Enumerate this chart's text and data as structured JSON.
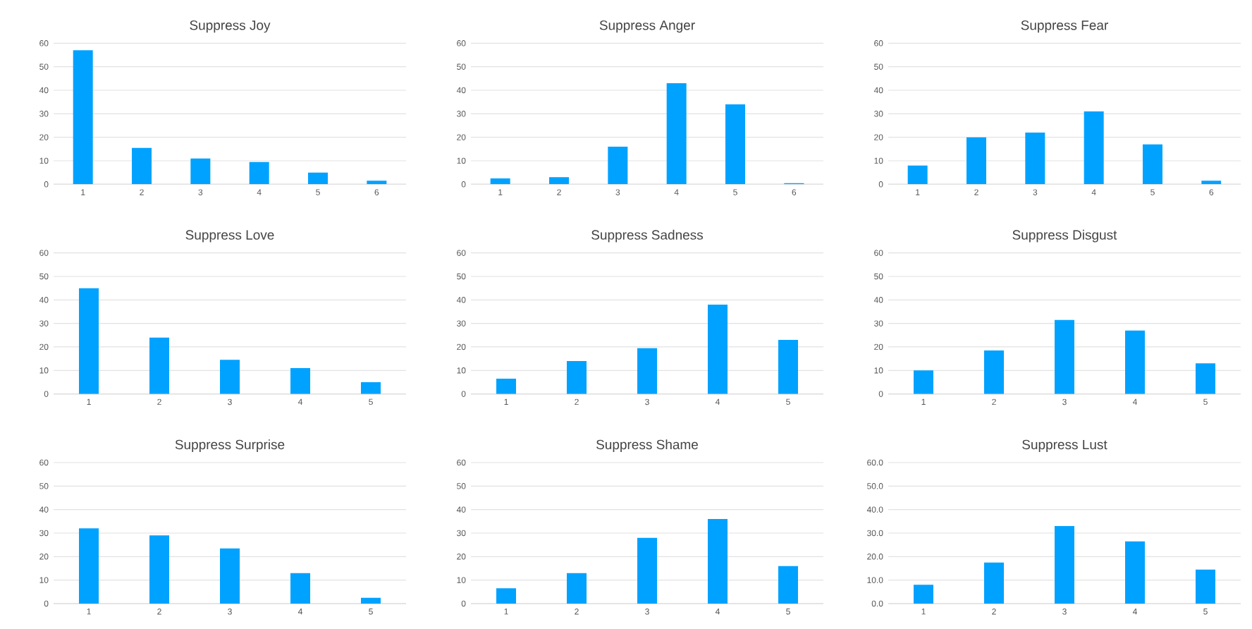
{
  "chart_data": [
    {
      "type": "bar",
      "title": "Suppress Joy",
      "categories": [
        "1",
        "2",
        "3",
        "4",
        "5",
        "6"
      ],
      "values": [
        57,
        15.5,
        11,
        9.5,
        5,
        1.5
      ],
      "color": "#00a2ff",
      "ylim": [
        0,
        60
      ],
      "yticks": [
        0,
        10,
        20,
        30,
        40,
        50,
        60
      ],
      "grid": "y"
    },
    {
      "type": "bar",
      "title": "Suppress Anger",
      "categories": [
        "1",
        "2",
        "3",
        "4",
        "5",
        "6"
      ],
      "values": [
        2.5,
        3,
        16,
        43,
        34,
        0.5
      ],
      "color": "#00a2ff",
      "ylim": [
        0,
        60
      ],
      "yticks": [
        0,
        10,
        20,
        30,
        40,
        50,
        60
      ],
      "grid": "y"
    },
    {
      "type": "bar",
      "title": "Suppress Fear",
      "categories": [
        "1",
        "2",
        "3",
        "4",
        "5",
        "6"
      ],
      "values": [
        8,
        20,
        22,
        31,
        17,
        1.5
      ],
      "color": "#00a2ff",
      "ylim": [
        0,
        60
      ],
      "yticks": [
        0,
        10,
        20,
        30,
        40,
        50,
        60
      ],
      "grid": "y"
    },
    {
      "type": "bar",
      "title": "Suppress Love",
      "categories": [
        "1",
        "2",
        "3",
        "4",
        "5"
      ],
      "values": [
        45,
        24,
        14.5,
        11,
        5
      ],
      "color": "#00a2ff",
      "ylim": [
        0,
        60
      ],
      "yticks": [
        0,
        10,
        20,
        30,
        40,
        50,
        60
      ],
      "grid": "y"
    },
    {
      "type": "bar",
      "title": "Suppress Sadness",
      "categories": [
        "1",
        "2",
        "3",
        "4",
        "5"
      ],
      "values": [
        6.5,
        14,
        19.5,
        38,
        23
      ],
      "color": "#00a2ff",
      "ylim": [
        0,
        60
      ],
      "yticks": [
        0,
        10,
        20,
        30,
        40,
        50,
        60
      ],
      "grid": "y"
    },
    {
      "type": "bar",
      "title": "Suppress Disgust",
      "categories": [
        "1",
        "2",
        "3",
        "4",
        "5"
      ],
      "values": [
        10,
        18.5,
        31.5,
        27,
        13
      ],
      "color": "#00a2ff",
      "ylim": [
        0,
        60
      ],
      "yticks": [
        0,
        10,
        20,
        30,
        40,
        50,
        60
      ],
      "grid": "y"
    },
    {
      "type": "bar",
      "title": "Suppress Surprise",
      "categories": [
        "1",
        "2",
        "3",
        "4",
        "5"
      ],
      "values": [
        32,
        29,
        23.5,
        13,
        2.5
      ],
      "color": "#00a2ff",
      "ylim": [
        0,
        60
      ],
      "yticks": [
        0,
        10,
        20,
        30,
        40,
        50,
        60
      ],
      "grid": "y"
    },
    {
      "type": "bar",
      "title": "Suppress Shame",
      "categories": [
        "1",
        "2",
        "3",
        "4",
        "5"
      ],
      "values": [
        6.5,
        13,
        28,
        36,
        16
      ],
      "color": "#00a2ff",
      "ylim": [
        0,
        60
      ],
      "yticks": [
        0,
        10,
        20,
        30,
        40,
        50,
        60
      ],
      "grid": "y"
    },
    {
      "type": "bar",
      "title": "Suppress Lust",
      "categories": [
        "1",
        "2",
        "3",
        "4",
        "5"
      ],
      "values": [
        8,
        17.5,
        33,
        26.5,
        14.5
      ],
      "color": "#00a2ff",
      "ylim": [
        0,
        60
      ],
      "yticks": [
        {
          "value": 0,
          "label": "0.0"
        },
        {
          "value": 10,
          "label": "10.0"
        },
        {
          "value": 20,
          "label": "20.0"
        },
        {
          "value": 30,
          "label": "30.0"
        },
        {
          "value": 40,
          "label": "40.0"
        },
        {
          "value": 50,
          "label": "50.0"
        },
        {
          "value": 60,
          "label": "60.0"
        }
      ],
      "grid": "y"
    }
  ]
}
